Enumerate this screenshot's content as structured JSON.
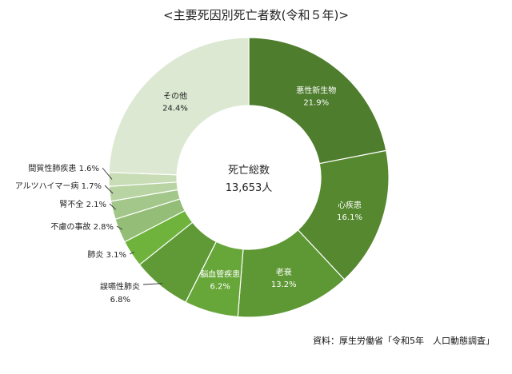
{
  "title": "<主要死因別死亡者数(令和５年)>",
  "source": "資料：厚生労働省「令和5年　人口動態調査」",
  "chart_data": {
    "type": "pie",
    "donut": true,
    "center_label_line1": "死亡総数",
    "center_label_line2": "13,653人",
    "slices": [
      {
        "name": "悪性新生物",
        "value": 21.9,
        "value_label": "21.9%",
        "color": "#4e7d2e",
        "label_side": "inside"
      },
      {
        "name": "心疾患",
        "value": 16.1,
        "value_label": "16.1%",
        "color": "#55882f",
        "label_side": "inside"
      },
      {
        "name": "老衰",
        "value": 13.2,
        "value_label": "13.2%",
        "color": "#5e9834",
        "label_side": "inside"
      },
      {
        "name": "脳血管疾患",
        "value": 6.2,
        "value_label": "6.2%",
        "color": "#67a638",
        "label_side": "inside"
      },
      {
        "name": "誤嚥性肺炎",
        "value": 6.8,
        "value_label": "6.8%",
        "color": "#5f9a37",
        "label_side": "outside"
      },
      {
        "name": "肺炎",
        "value": 3.1,
        "value_label": "3.1%",
        "color": "#6fb33d",
        "label_side": "outside"
      },
      {
        "name": "不慮の事故",
        "value": 2.8,
        "value_label": "2.8%",
        "color": "#94be77",
        "label_side": "outside"
      },
      {
        "name": "腎不全",
        "value": 2.1,
        "value_label": "2.1%",
        "color": "#a3c78a",
        "label_side": "outside"
      },
      {
        "name": "アルツハイマー病",
        "value": 1.7,
        "value_label": "1.7%",
        "color": "#b8d4a2",
        "label_side": "outside"
      },
      {
        "name": "間質性肺疾患",
        "value": 1.6,
        "value_label": "1.6%",
        "color": "#c8dcb6",
        "label_side": "outside"
      },
      {
        "name": "その他",
        "value": 24.4,
        "value_label": "24.4%",
        "color": "#dce8d2",
        "label_side": "inside"
      }
    ]
  }
}
